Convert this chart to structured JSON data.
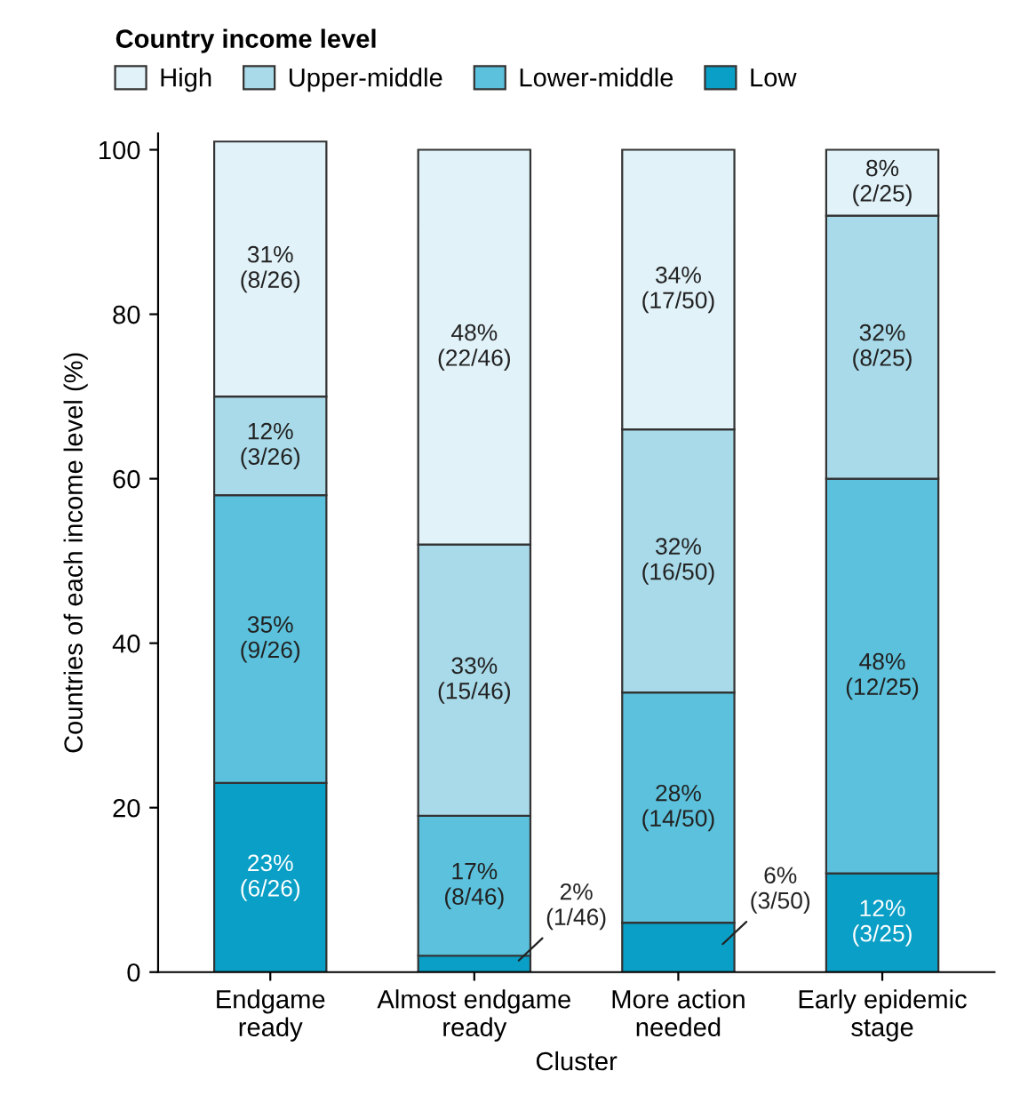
{
  "chart_data": {
    "type": "bar",
    "stacked": true,
    "xlabel": "Cluster",
    "ylabel": "Countries of each income level (%)",
    "legend_title": "Country income level",
    "legend": "top left",
    "categories": [
      "Endgame\nready",
      "Almost endgame\nready",
      "More action\nneeded",
      "Early epidemic\nstage"
    ],
    "ylim": [
      0,
      102
    ],
    "yticks": [
      0,
      20,
      40,
      60,
      80,
      100
    ],
    "grid": false,
    "series": [
      {
        "name": "Low",
        "color": "#0a9fc6",
        "values": [
          23,
          2,
          6,
          12
        ],
        "value_labels": [
          "23%\n(6/26)",
          "2%\n(1/46)",
          "6%\n(3/50)",
          "12%\n(3/25)"
        ]
      },
      {
        "name": "Lower-middle",
        "color": "#5bc1dc",
        "values": [
          35,
          17,
          28,
          48
        ],
        "value_labels": [
          "35%\n(9/26)",
          "17%\n(8/46)",
          "28%\n(14/50)",
          "48%\n(12/25)"
        ]
      },
      {
        "name": "Upper-middle",
        "color": "#a9dae9",
        "values": [
          12,
          33,
          32,
          32
        ],
        "value_labels": [
          "12%\n(3/26)",
          "33%\n(15/46)",
          "32%\n(16/50)",
          "32%\n(8/25)"
        ]
      },
      {
        "name": "High",
        "color": "#e1f2f9",
        "values": [
          31,
          48,
          34,
          8
        ],
        "value_labels": [
          "31%\n(8/26)",
          "48%\n(22/46)",
          "34%\n(17/50)",
          "8%\n(2/25)"
        ]
      }
    ]
  }
}
